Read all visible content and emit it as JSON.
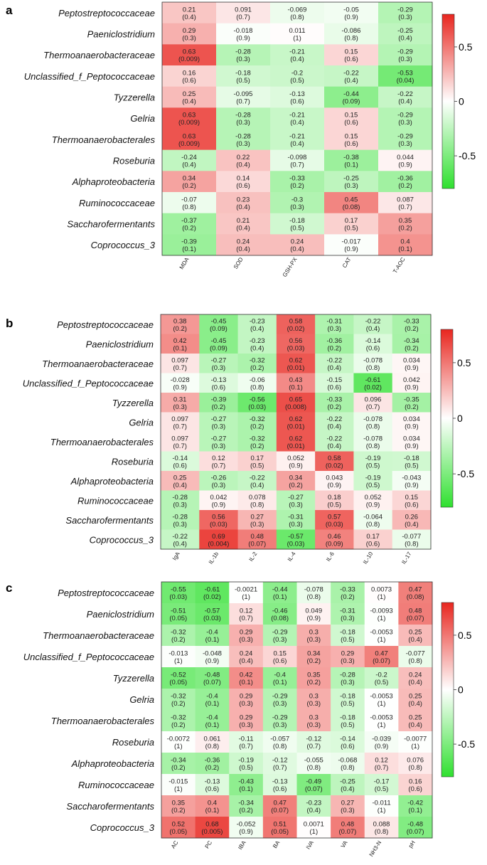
{
  "chart_data": [
    {
      "type": "heatmap",
      "panel": "a",
      "rows": [
        "Peptostreptococcaceae",
        "Paeniclostridium",
        "Thermoanaerobacteraceae",
        "Unclassified_f_Peptococcaceae",
        "Tyzzerella",
        "Gelria",
        "Thermoanaerobacterales",
        "Roseburia",
        "Alphaproteobacteria",
        "Ruminococcaceae",
        "Saccharofermentants",
        "Coprococcus_3"
      ],
      "columns": [
        "MDA",
        "SOD",
        "GSH-PX",
        "CAT",
        "T-AOC"
      ],
      "values": [
        [
          0.21,
          0.091,
          -0.069,
          -0.05,
          -0.29
        ],
        [
          0.29,
          -0.018,
          0.011,
          -0.086,
          -0.25
        ],
        [
          0.63,
          -0.28,
          -0.21,
          0.15,
          -0.29
        ],
        [
          0.16,
          -0.18,
          -0.2,
          -0.22,
          -0.53
        ],
        [
          0.25,
          -0.095,
          -0.13,
          -0.44,
          -0.22
        ],
        [
          0.63,
          -0.28,
          -0.21,
          0.15,
          -0.29
        ],
        [
          0.63,
          -0.28,
          -0.21,
          0.15,
          -0.29
        ],
        [
          -0.24,
          0.22,
          -0.098,
          -0.38,
          0.044
        ],
        [
          0.34,
          0.14,
          -0.33,
          -0.25,
          -0.36
        ],
        [
          -0.07,
          0.23,
          -0.3,
          0.45,
          0.087
        ],
        [
          -0.37,
          0.21,
          -0.18,
          0.17,
          0.35
        ],
        [
          -0.39,
          0.24,
          0.24,
          -0.017,
          0.4
        ]
      ],
      "pvalues": [
        [
          "0.4",
          "0.7",
          "0.8",
          "0.9",
          "0.3"
        ],
        [
          "0.3",
          "0.9",
          "1",
          "0.8",
          "0.4"
        ],
        [
          "0.009",
          "0.3",
          "0.4",
          "0.6",
          "0.3"
        ],
        [
          "0.6",
          "0.5",
          "0.5",
          "0.4",
          "0.04"
        ],
        [
          "0.4",
          "0.7",
          "0.6",
          "0.09",
          "0.4"
        ],
        [
          "0.009",
          "0.3",
          "0.4",
          "0.6",
          "0.3"
        ],
        [
          "0.009",
          "0.3",
          "0.4",
          "0.6",
          "0.3"
        ],
        [
          "0.4",
          "0.4",
          "0.7",
          "0.1",
          "0.9"
        ],
        [
          "0.2",
          "0.6",
          "0.2",
          "0.3",
          "0.2"
        ],
        [
          "0.8",
          "0.4",
          "0.3",
          "0.08",
          "0.7"
        ],
        [
          "0.2",
          "0.4",
          "0.5",
          "0.5",
          "0.2"
        ],
        [
          "0.1",
          "0.4",
          "0.4",
          "0.9",
          "0.1"
        ]
      ]
    },
    {
      "type": "heatmap",
      "panel": "b",
      "rows": [
        "Peptostreptococcaceae",
        "Paeniclostridium",
        "Thermoanaerobacteraceae",
        "Unclassified_f_Peptococcaceae",
        "Tyzzerella",
        "Gelria",
        "Thermoanaerobacterales",
        "Roseburia",
        "Alphaproteobacteria",
        "Ruminococcaceae",
        "Saccharofermentants",
        "Coprococcus_3"
      ],
      "columns": [
        "IgA",
        "IL-1b",
        "IL-2",
        "IL-4",
        "IL-6",
        "IL-10",
        "IL-17"
      ],
      "values": [
        [
          0.38,
          -0.45,
          -0.23,
          0.58,
          -0.31,
          -0.22,
          -0.33
        ],
        [
          0.42,
          -0.45,
          -0.23,
          0.56,
          -0.36,
          -0.14,
          -0.34
        ],
        [
          0.097,
          -0.27,
          -0.32,
          0.62,
          -0.22,
          -0.078,
          0.034
        ],
        [
          -0.028,
          -0.13,
          -0.06,
          0.43,
          -0.15,
          -0.61,
          0.042
        ],
        [
          0.31,
          -0.39,
          -0.56,
          0.65,
          -0.33,
          0.096,
          -0.35
        ],
        [
          0.097,
          -0.27,
          -0.32,
          0.62,
          -0.22,
          -0.078,
          0.034
        ],
        [
          0.097,
          -0.27,
          -0.32,
          0.62,
          -0.22,
          -0.078,
          0.034
        ],
        [
          -0.14,
          0.12,
          0.17,
          0.052,
          0.58,
          -0.19,
          -0.18
        ],
        [
          0.25,
          -0.26,
          -0.22,
          0.34,
          0.043,
          -0.19,
          -0.043
        ],
        [
          -0.28,
          0.042,
          0.078,
          -0.27,
          0.18,
          0.052,
          0.15
        ],
        [
          -0.28,
          0.56,
          0.27,
          -0.31,
          0.57,
          -0.064,
          0.26
        ],
        [
          -0.22,
          0.69,
          0.48,
          -0.57,
          0.46,
          0.17,
          -0.077
        ]
      ],
      "pvalues": [
        [
          "0.2",
          "0.09",
          "0.4",
          "0.02",
          "0.3",
          "0.4",
          "0.2"
        ],
        [
          "0.1",
          "0.09",
          "0.4",
          "0.03",
          "0.2",
          "0.6",
          "0.2"
        ],
        [
          "0.7",
          "0.3",
          "0.2",
          "0.01",
          "0.4",
          "0.8",
          "0.9"
        ],
        [
          "0.9",
          "0.6",
          "0.8",
          "0.1",
          "0.6",
          "0.02",
          "0.9"
        ],
        [
          "0.3",
          "0.2",
          "0.03",
          "0.008",
          "0.2",
          "0.7",
          "0.2"
        ],
        [
          "0.7",
          "0.3",
          "0.2",
          "0.01",
          "0.4",
          "0.8",
          "0.9"
        ],
        [
          "0.7",
          "0.3",
          "0.2",
          "0.01",
          "0.4",
          "0.8",
          "0.9"
        ],
        [
          "0.6",
          "0.7",
          "0.5",
          "0.9",
          "0.02",
          "0.5",
          "0.5"
        ],
        [
          "0.4",
          "0.3",
          "0.4",
          "0.2",
          "0.9",
          "0.5",
          "0.9"
        ],
        [
          "0.3",
          "0.9",
          "0.8",
          "0.3",
          "0.5",
          "0.9",
          "0.6"
        ],
        [
          "0.3",
          "0.03",
          "0.3",
          "0.3",
          "0.03",
          "0.8",
          "0.4"
        ],
        [
          "0.4",
          "0.004",
          "0.07",
          "0.03",
          "0.09",
          "0.6",
          "0.8"
        ]
      ]
    },
    {
      "type": "heatmap",
      "panel": "c",
      "rows": [
        "Peptostreptococcaceae",
        "Paeniclostridium",
        "Thermoanaerobacteraceae",
        "Unclassified_f_Peptococcaceae",
        "Tyzzerella",
        "Gelria",
        "Thermoanaerobacterales",
        "Roseburia",
        "Alphaproteobacteria",
        "Ruminococcaceae",
        "Saccharofermentants",
        "Coprococcus_3"
      ],
      "columns": [
        "AC",
        "PC",
        "IBA",
        "BA",
        "IVA",
        "VA",
        "NH3-N",
        "pH"
      ],
      "values": [
        [
          -0.55,
          -0.61,
          -0.0021,
          -0.44,
          -0.078,
          -0.33,
          0.0073,
          0.47
        ],
        [
          -0.51,
          -0.57,
          0.12,
          -0.46,
          0.049,
          -0.31,
          -0.0093,
          0.48
        ],
        [
          -0.32,
          -0.4,
          0.29,
          -0.29,
          0.3,
          -0.18,
          -0.0053,
          0.25
        ],
        [
          -0.013,
          -0.048,
          0.24,
          0.15,
          0.34,
          0.29,
          0.47,
          -0.077
        ],
        [
          -0.52,
          -0.48,
          0.42,
          -0.4,
          0.35,
          -0.28,
          -0.2,
          0.24
        ],
        [
          -0.32,
          -0.4,
          0.29,
          -0.29,
          0.3,
          -0.18,
          -0.0053,
          0.25
        ],
        [
          -0.32,
          -0.4,
          0.29,
          -0.29,
          0.3,
          -0.18,
          -0.0053,
          0.25
        ],
        [
          -0.0072,
          0.061,
          -0.11,
          -0.057,
          -0.12,
          -0.14,
          -0.039,
          -0.0077
        ],
        [
          -0.34,
          -0.36,
          -0.19,
          -0.12,
          -0.055,
          -0.068,
          0.12,
          0.076
        ],
        [
          -0.015,
          -0.13,
          -0.43,
          -0.13,
          -0.49,
          -0.25,
          -0.17,
          0.16
        ],
        [
          0.35,
          0.4,
          -0.34,
          0.47,
          -0.23,
          0.27,
          -0.011,
          -0.42
        ],
        [
          0.52,
          0.68,
          -0.052,
          0.51,
          0.0071,
          0.48,
          0.088,
          -0.48
        ]
      ],
      "pvalues": [
        [
          "0.03",
          "0.02",
          "1",
          "0.1",
          "0.8",
          "0.2",
          "1",
          "0.08"
        ],
        [
          "0.05",
          "0.03",
          "0.7",
          "0.08",
          "0.9",
          "0.3",
          "1",
          "0.07"
        ],
        [
          "0.2",
          "0.1",
          "0.3",
          "0.3",
          "0.3",
          "0.5",
          "1",
          "0.4"
        ],
        [
          "1",
          "0.9",
          "0.4",
          "0.6",
          "0.2",
          "0.3",
          "0.07",
          "0.8"
        ],
        [
          "0.05",
          "0.07",
          "0.1",
          "0.1",
          "0.2",
          "0.3",
          "0.5",
          "0.4"
        ],
        [
          "0.2",
          "0.1",
          "0.3",
          "0.3",
          "0.3",
          "0.5",
          "1",
          "0.4"
        ],
        [
          "0.2",
          "0.1",
          "0.3",
          "0.3",
          "0.3",
          "0.5",
          "1",
          "0.4"
        ],
        [
          "1",
          "0.8",
          "0.7",
          "0.8",
          "0.7",
          "0.6",
          "0.9",
          "1"
        ],
        [
          "0.2",
          "0.2",
          "0.5",
          "0.7",
          "0.8",
          "0.8",
          "0.7",
          "0.8"
        ],
        [
          "1",
          "0.6",
          "0.1",
          "0.6",
          "0.07",
          "0.4",
          "0.5",
          "0.6"
        ],
        [
          "0.2",
          "0.1",
          "0.2",
          "0.07",
          "0.4",
          "0.3",
          "1",
          "0.1"
        ],
        [
          "0.05",
          "0.005",
          "0.9",
          "0.05",
          "1",
          "0.07",
          "0.8",
          "0.07"
        ]
      ]
    }
  ],
  "colorbar": {
    "ticks": [
      "0.5",
      "0",
      "-0.5"
    ],
    "tick_values": [
      0.5,
      0,
      -0.5
    ],
    "range": [
      -0.8,
      0.8
    ],
    "high_color": "#e8261f",
    "mid_color": "#ffffff",
    "low_color": "#2fe02f"
  }
}
